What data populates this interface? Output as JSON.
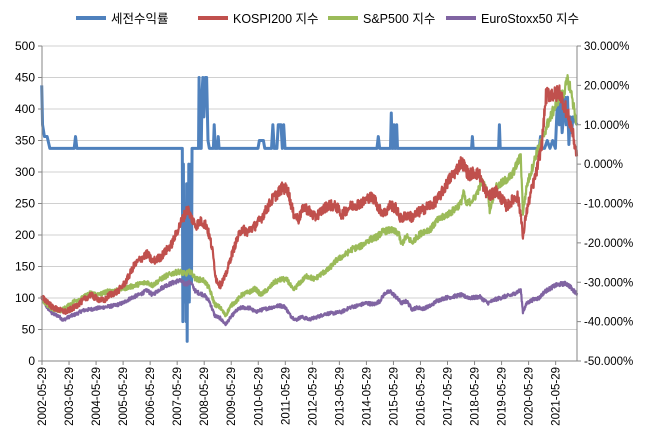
{
  "chart_data": {
    "type": "line",
    "title": "",
    "legend_placement": "top",
    "grid": "horizontal",
    "series": [
      {
        "name": "세전수익률",
        "color": "#4F81BD",
        "axis": "right"
      },
      {
        "name": "KOSPI200 지수",
        "color": "#C0504D",
        "axis": "left"
      },
      {
        "name": "S&P500 지수",
        "color": "#9BBB59",
        "axis": "left"
      },
      {
        "name": "EuroStoxx50 지수",
        "color": "#8064A2",
        "axis": "left"
      }
    ],
    "y_left": {
      "min": 0,
      "max": 500,
      "step": 50,
      "ticks": [
        "0",
        "50",
        "100",
        "150",
        "200",
        "250",
        "300",
        "350",
        "400",
        "450",
        "500"
      ]
    },
    "y_right": {
      "min": -0.5,
      "max": 0.3,
      "step": 0.1,
      "ticks": [
        "-50.000%",
        "-40.000%",
        "-30.000%",
        "-20.000%",
        "-10.000%",
        "0.000%",
        "10.000%",
        "20.000%",
        "30.000%"
      ]
    },
    "x_ticks": [
      "2002-05-29",
      "2003-05-29",
      "2004-05-29",
      "2005-05-29",
      "2006-05-29",
      "2007-05-29",
      "2008-05-29",
      "2009-05-29",
      "2010-05-29",
      "2011-05-29",
      "2012-05-29",
      "2013-05-29",
      "2014-05-29",
      "2015-05-29",
      "2016-05-29",
      "2017-05-29",
      "2018-05-29",
      "2019-05-29",
      "2020-05-29",
      "2021-05-29"
    ],
    "x_range_years": [
      2002.41,
      2022.2
    ],
    "kospi200_points": [
      [
        2002.4,
        100
      ],
      [
        2002.6,
        95
      ],
      [
        2002.8,
        85
      ],
      [
        2003.1,
        80
      ],
      [
        2003.3,
        78
      ],
      [
        2003.6,
        85
      ],
      [
        2003.9,
        95
      ],
      [
        2004.2,
        105
      ],
      [
        2004.4,
        100
      ],
      [
        2004.7,
        95
      ],
      [
        2004.9,
        105
      ],
      [
        2005.2,
        110
      ],
      [
        2005.5,
        125
      ],
      [
        2005.8,
        150
      ],
      [
        2006.0,
        160
      ],
      [
        2006.3,
        170
      ],
      [
        2006.5,
        158
      ],
      [
        2006.8,
        165
      ],
      [
        2007.0,
        175
      ],
      [
        2007.2,
        185
      ],
      [
        2007.4,
        205
      ],
      [
        2007.6,
        225
      ],
      [
        2007.8,
        242
      ],
      [
        2007.9,
        230
      ],
      [
        2008.1,
        215
      ],
      [
        2008.3,
        222
      ],
      [
        2008.5,
        215
      ],
      [
        2008.7,
        180
      ],
      [
        2008.85,
        130
      ],
      [
        2009.0,
        120
      ],
      [
        2009.2,
        135
      ],
      [
        2009.4,
        165
      ],
      [
        2009.6,
        190
      ],
      [
        2009.8,
        210
      ],
      [
        2010.0,
        205
      ],
      [
        2010.3,
        215
      ],
      [
        2010.5,
        225
      ],
      [
        2010.7,
        240
      ],
      [
        2010.9,
        255
      ],
      [
        2011.1,
        265
      ],
      [
        2011.3,
        275
      ],
      [
        2011.5,
        272
      ],
      [
        2011.7,
        235
      ],
      [
        2011.9,
        225
      ],
      [
        2012.1,
        245
      ],
      [
        2012.3,
        238
      ],
      [
        2012.5,
        228
      ],
      [
        2012.8,
        240
      ],
      [
        2013.0,
        248
      ],
      [
        2013.3,
        245
      ],
      [
        2013.5,
        232
      ],
      [
        2013.8,
        245
      ],
      [
        2014.0,
        248
      ],
      [
        2014.3,
        252
      ],
      [
        2014.5,
        260
      ],
      [
        2014.7,
        258
      ],
      [
        2014.9,
        240
      ],
      [
        2015.1,
        235
      ],
      [
        2015.3,
        248
      ],
      [
        2015.5,
        242
      ],
      [
        2015.7,
        225
      ],
      [
        2015.9,
        232
      ],
      [
        2016.1,
        228
      ],
      [
        2016.3,
        235
      ],
      [
        2016.5,
        240
      ],
      [
        2016.7,
        246
      ],
      [
        2016.9,
        250
      ],
      [
        2017.1,
        260
      ],
      [
        2017.3,
        275
      ],
      [
        2017.5,
        290
      ],
      [
        2017.7,
        300
      ],
      [
        2017.9,
        315
      ],
      [
        2018.0,
        312
      ],
      [
        2018.2,
        295
      ],
      [
        2018.4,
        300
      ],
      [
        2018.6,
        295
      ],
      [
        2018.8,
        270
      ],
      [
        2019.0,
        262
      ],
      [
        2019.2,
        270
      ],
      [
        2019.4,
        258
      ],
      [
        2019.6,
        245
      ],
      [
        2019.8,
        255
      ],
      [
        2020.0,
        262
      ],
      [
        2020.15,
        225
      ],
      [
        2020.2,
        192
      ],
      [
        2020.3,
        230
      ],
      [
        2020.5,
        268
      ],
      [
        2020.7,
        300
      ],
      [
        2020.9,
        345
      ],
      [
        2021.05,
        420
      ],
      [
        2021.2,
        425
      ],
      [
        2021.4,
        422
      ],
      [
        2021.55,
        428
      ],
      [
        2021.7,
        410
      ],
      [
        2021.85,
        392
      ],
      [
        2022.0,
        370
      ],
      [
        2022.2,
        325
      ]
    ],
    "sp500_points": [
      [
        2002.4,
        100
      ],
      [
        2002.6,
        88
      ],
      [
        2002.8,
        82
      ],
      [
        2003.1,
        80
      ],
      [
        2003.3,
        85
      ],
      [
        2003.6,
        95
      ],
      [
        2003.9,
        100
      ],
      [
        2004.2,
        108
      ],
      [
        2004.5,
        105
      ],
      [
        2004.8,
        110
      ],
      [
        2005.1,
        112
      ],
      [
        2005.4,
        115
      ],
      [
        2005.7,
        118
      ],
      [
        2006.0,
        122
      ],
      [
        2006.3,
        125
      ],
      [
        2006.5,
        120
      ],
      [
        2006.8,
        130
      ],
      [
        2007.0,
        135
      ],
      [
        2007.3,
        140
      ],
      [
        2007.5,
        142
      ],
      [
        2007.7,
        138
      ],
      [
        2007.9,
        142
      ],
      [
        2008.1,
        130
      ],
      [
        2008.4,
        128
      ],
      [
        2008.6,
        115
      ],
      [
        2008.8,
        90
      ],
      [
        2009.0,
        85
      ],
      [
        2009.2,
        72
      ],
      [
        2009.4,
        88
      ],
      [
        2009.6,
        95
      ],
      [
        2009.8,
        105
      ],
      [
        2010.1,
        110
      ],
      [
        2010.3,
        115
      ],
      [
        2010.5,
        105
      ],
      [
        2010.8,
        115
      ],
      [
        2011.0,
        125
      ],
      [
        2011.3,
        130
      ],
      [
        2011.5,
        128
      ],
      [
        2011.7,
        112
      ],
      [
        2011.9,
        122
      ],
      [
        2012.2,
        135
      ],
      [
        2012.5,
        130
      ],
      [
        2012.8,
        140
      ],
      [
        2013.0,
        145
      ],
      [
        2013.3,
        160
      ],
      [
        2013.6,
        168
      ],
      [
        2013.9,
        178
      ],
      [
        2014.2,
        182
      ],
      [
        2014.5,
        192
      ],
      [
        2014.8,
        197
      ],
      [
        2015.0,
        205
      ],
      [
        2015.3,
        208
      ],
      [
        2015.6,
        203
      ],
      [
        2015.7,
        185
      ],
      [
        2015.9,
        198
      ],
      [
        2016.1,
        188
      ],
      [
        2016.3,
        198
      ],
      [
        2016.5,
        205
      ],
      [
        2016.8,
        210
      ],
      [
        2017.0,
        222
      ],
      [
        2017.3,
        230
      ],
      [
        2017.6,
        238
      ],
      [
        2017.9,
        250
      ],
      [
        2018.0,
        268
      ],
      [
        2018.1,
        248
      ],
      [
        2018.4,
        258
      ],
      [
        2018.7,
        285
      ],
      [
        2018.9,
        265
      ],
      [
        2018.97,
        240
      ],
      [
        2019.2,
        275
      ],
      [
        2019.5,
        285
      ],
      [
        2019.8,
        295
      ],
      [
        2020.0,
        315
      ],
      [
        2020.12,
        325
      ],
      [
        2020.2,
        235
      ],
      [
        2020.35,
        280
      ],
      [
        2020.5,
        300
      ],
      [
        2020.7,
        330
      ],
      [
        2020.9,
        350
      ],
      [
        2021.1,
        375
      ],
      [
        2021.3,
        395
      ],
      [
        2021.5,
        415
      ],
      [
        2021.7,
        425
      ],
      [
        2021.85,
        445
      ],
      [
        2021.95,
        435
      ],
      [
        2022.05,
        410
      ],
      [
        2022.2,
        375
      ]
    ],
    "eurostoxx50_points": [
      [
        2002.4,
        100
      ],
      [
        2002.6,
        85
      ],
      [
        2002.8,
        75
      ],
      [
        2003.0,
        72
      ],
      [
        2003.2,
        65
      ],
      [
        2003.4,
        70
      ],
      [
        2003.7,
        75
      ],
      [
        2003.9,
        80
      ],
      [
        2004.2,
        82
      ],
      [
        2004.5,
        84
      ],
      [
        2004.8,
        86
      ],
      [
        2005.1,
        88
      ],
      [
        2005.4,
        92
      ],
      [
        2005.7,
        100
      ],
      [
        2006.0,
        105
      ],
      [
        2006.3,
        112
      ],
      [
        2006.5,
        105
      ],
      [
        2006.8,
        115
      ],
      [
        2007.0,
        120
      ],
      [
        2007.3,
        125
      ],
      [
        2007.5,
        128
      ],
      [
        2007.7,
        122
      ],
      [
        2007.9,
        125
      ],
      [
        2008.1,
        110
      ],
      [
        2008.4,
        105
      ],
      [
        2008.6,
        95
      ],
      [
        2008.8,
        72
      ],
      [
        2009.0,
        68
      ],
      [
        2009.2,
        58
      ],
      [
        2009.4,
        70
      ],
      [
        2009.6,
        80
      ],
      [
        2009.8,
        85
      ],
      [
        2010.1,
        84
      ],
      [
        2010.3,
        78
      ],
      [
        2010.6,
        82
      ],
      [
        2010.9,
        85
      ],
      [
        2011.2,
        88
      ],
      [
        2011.4,
        86
      ],
      [
        2011.6,
        72
      ],
      [
        2011.8,
        65
      ],
      [
        2012.0,
        70
      ],
      [
        2012.3,
        66
      ],
      [
        2012.6,
        70
      ],
      [
        2012.9,
        75
      ],
      [
        2013.2,
        76
      ],
      [
        2013.5,
        78
      ],
      [
        2013.8,
        85
      ],
      [
        2014.1,
        88
      ],
      [
        2014.4,
        92
      ],
      [
        2014.7,
        90
      ],
      [
        2014.9,
        95
      ],
      [
        2015.1,
        108
      ],
      [
        2015.3,
        110
      ],
      [
        2015.5,
        102
      ],
      [
        2015.7,
        92
      ],
      [
        2015.9,
        95
      ],
      [
        2016.1,
        82
      ],
      [
        2016.3,
        85
      ],
      [
        2016.5,
        83
      ],
      [
        2016.8,
        88
      ],
      [
        2017.0,
        95
      ],
      [
        2017.3,
        100
      ],
      [
        2017.6,
        102
      ],
      [
        2017.9,
        105
      ],
      [
        2018.0,
        103
      ],
      [
        2018.3,
        100
      ],
      [
        2018.6,
        102
      ],
      [
        2018.9,
        92
      ],
      [
        2019.2,
        98
      ],
      [
        2019.5,
        102
      ],
      [
        2019.8,
        105
      ],
      [
        2020.0,
        110
      ],
      [
        2020.12,
        112
      ],
      [
        2020.2,
        78
      ],
      [
        2020.35,
        92
      ],
      [
        2020.6,
        98
      ],
      [
        2020.8,
        100
      ],
      [
        2021.0,
        110
      ],
      [
        2021.2,
        115
      ],
      [
        2021.4,
        120
      ],
      [
        2021.6,
        122
      ],
      [
        2021.8,
        123
      ],
      [
        2021.95,
        118
      ],
      [
        2022.05,
        112
      ],
      [
        2022.2,
        108
      ]
    ],
    "return_steps": [
      [
        2002.4,
        0.2
      ],
      [
        2002.43,
        0.1
      ],
      [
        2002.5,
        0.07
      ],
      [
        2002.6,
        0.07
      ],
      [
        2002.7,
        0.04
      ],
      [
        2003.0,
        0.04
      ],
      [
        2003.6,
        0.04
      ],
      [
        2003.65,
        0.07
      ],
      [
        2003.7,
        0.04
      ],
      [
        2007.6,
        0.04
      ],
      [
        2007.62,
        -0.4
      ],
      [
        2007.64,
        0.0
      ],
      [
        2007.66,
        -0.35
      ],
      [
        2007.68,
        -0.1
      ],
      [
        2007.7,
        -0.3
      ],
      [
        2007.72,
        -0.15
      ],
      [
        2007.74,
        -0.4
      ],
      [
        2007.76,
        -0.05
      ],
      [
        2007.78,
        -0.45
      ],
      [
        2007.8,
        -0.1
      ],
      [
        2007.82,
        -0.3
      ],
      [
        2007.84,
        0.0
      ],
      [
        2007.86,
        -0.35
      ],
      [
        2007.88,
        -0.05
      ],
      [
        2007.9,
        -0.25
      ],
      [
        2007.92,
        0.0
      ],
      [
        2007.94,
        -0.3
      ],
      [
        2007.96,
        0.04
      ],
      [
        2008.2,
        0.04
      ],
      [
        2008.22,
        0.22
      ],
      [
        2008.25,
        0.04
      ],
      [
        2008.3,
        0.04
      ],
      [
        2008.33,
        0.18
      ],
      [
        2008.36,
        0.22
      ],
      [
        2008.4,
        0.12
      ],
      [
        2008.45,
        0.22
      ],
      [
        2008.5,
        0.22
      ],
      [
        2008.55,
        0.06
      ],
      [
        2008.6,
        0.04
      ],
      [
        2008.75,
        0.04
      ],
      [
        2008.78,
        0.1
      ],
      [
        2008.82,
        0.04
      ],
      [
        2008.9,
        0.04
      ],
      [
        2008.93,
        0.07
      ],
      [
        2008.96,
        0.04
      ],
      [
        2010.4,
        0.04
      ],
      [
        2010.45,
        0.06
      ],
      [
        2010.6,
        0.06
      ],
      [
        2010.65,
        0.04
      ],
      [
        2010.9,
        0.04
      ],
      [
        2010.95,
        0.1
      ],
      [
        2011.0,
        0.04
      ],
      [
        2011.1,
        0.04
      ],
      [
        2011.15,
        0.1
      ],
      [
        2011.25,
        0.1
      ],
      [
        2011.3,
        0.04
      ],
      [
        2011.35,
        0.1
      ],
      [
        2011.4,
        0.04
      ],
      [
        2014.8,
        0.04
      ],
      [
        2014.85,
        0.07
      ],
      [
        2014.9,
        0.04
      ],
      [
        2015.3,
        0.04
      ],
      [
        2015.33,
        0.13
      ],
      [
        2015.36,
        0.04
      ],
      [
        2015.4,
        0.04
      ],
      [
        2015.43,
        0.1
      ],
      [
        2015.46,
        0.04
      ],
      [
        2015.5,
        0.04
      ],
      [
        2015.53,
        0.1
      ],
      [
        2015.56,
        0.04
      ],
      [
        2017.9,
        0.04
      ],
      [
        2018.0,
        0.04
      ],
      [
        2018.3,
        0.04
      ],
      [
        2018.33,
        0.07
      ],
      [
        2018.36,
        0.04
      ],
      [
        2019.3,
        0.04
      ],
      [
        2019.33,
        0.1
      ],
      [
        2019.36,
        0.04
      ],
      [
        2020.8,
        0.04
      ],
      [
        2020.85,
        0.07
      ],
      [
        2020.9,
        0.04
      ],
      [
        2021.0,
        0.04
      ],
      [
        2021.1,
        0.06
      ],
      [
        2021.2,
        0.04
      ],
      [
        2021.3,
        0.06
      ],
      [
        2021.4,
        0.04
      ],
      [
        2021.45,
        0.12
      ],
      [
        2021.5,
        0.18
      ],
      [
        2021.55,
        0.1
      ],
      [
        2021.6,
        0.16
      ],
      [
        2021.65,
        0.08
      ],
      [
        2021.7,
        0.12
      ],
      [
        2021.75,
        0.17
      ],
      [
        2021.8,
        0.1
      ],
      [
        2021.85,
        0.17
      ],
      [
        2021.9,
        0.05
      ],
      [
        2021.95,
        0.12
      ],
      [
        2022.0,
        0.08
      ],
      [
        2022.05,
        0.12
      ],
      [
        2022.2,
        0.1
      ]
    ]
  }
}
